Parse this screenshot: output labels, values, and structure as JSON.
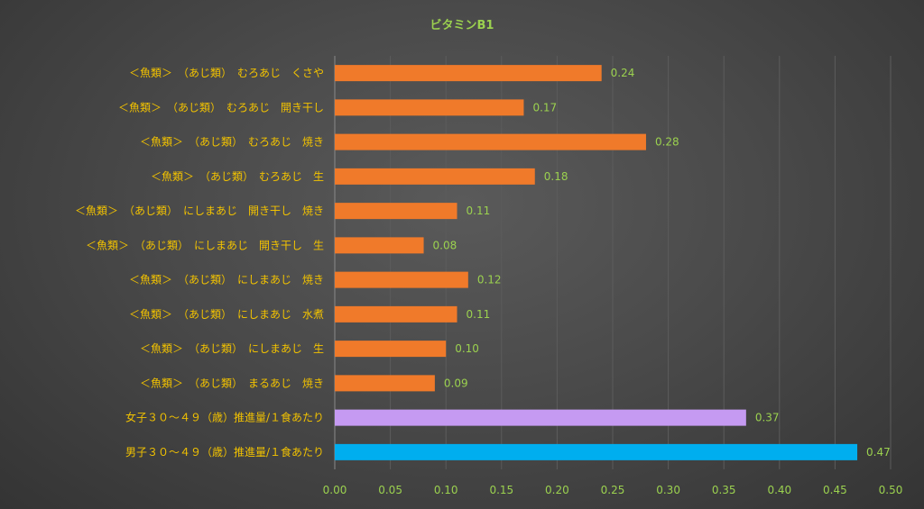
{
  "chart_data": {
    "type": "bar",
    "orientation": "horizontal",
    "title": "ビタミンB1",
    "xlabel": "",
    "ylabel": "",
    "xlim": [
      0,
      0.5
    ],
    "x_ticks": [
      "0.00",
      "0.05",
      "0.10",
      "0.15",
      "0.20",
      "0.25",
      "0.30",
      "0.35",
      "0.40",
      "0.45",
      "0.50"
    ],
    "grid": true,
    "legend": "none",
    "categories": [
      "＜魚類＞　（あじ類）　むろあじ　くさや",
      "＜魚類＞　（あじ類）　むろあじ　開き干し",
      "＜魚類＞　（あじ類）　むろあじ　焼き",
      "＜魚類＞　（あじ類）　むろあじ　生",
      "＜魚類＞　（あじ類）　にしまあじ　開き干し　焼き",
      "＜魚類＞　（あじ類）　にしまあじ　開き干し　生",
      "＜魚類＞　（あじ類）　にしまあじ　焼き",
      "＜魚類＞　（あじ類）　にしまあじ　水煮",
      "＜魚類＞　（あじ類）　にしまあじ　生",
      "＜魚類＞　（あじ類）　まるあじ　焼き",
      "女子３０～４９（歳）推進量/１食あたり",
      "男子３０～４９（歳）推進量/１食あたり"
    ],
    "values": [
      0.24,
      0.17,
      0.28,
      0.18,
      0.11,
      0.08,
      0.12,
      0.11,
      0.1,
      0.09,
      0.37,
      0.47
    ],
    "value_labels": [
      "0.24",
      "0.17",
      "0.28",
      "0.18",
      "0.11",
      "0.08",
      "0.12",
      "0.11",
      "0.10",
      "0.09",
      "0.37",
      "0.47"
    ],
    "bar_colors": [
      "#f07a2a",
      "#f07a2a",
      "#f07a2a",
      "#f07a2a",
      "#f07a2a",
      "#f07a2a",
      "#f07a2a",
      "#f07a2a",
      "#f07a2a",
      "#f07a2a",
      "#c59af2",
      "#00aeef"
    ]
  },
  "colors": {
    "title": "#9bd14f",
    "category_label": "#f2c200",
    "tick_label": "#9bd14f",
    "data_label": "#9bd14f"
  }
}
